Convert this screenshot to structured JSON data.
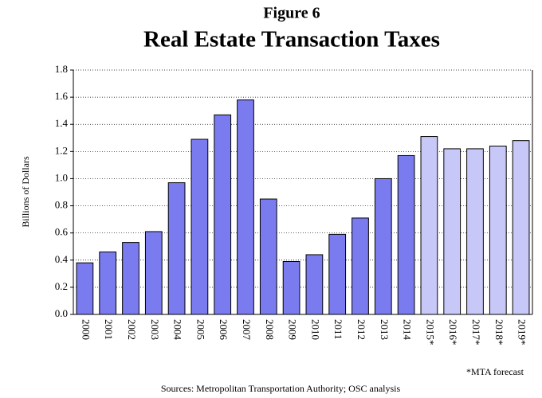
{
  "chart_data": {
    "type": "bar",
    "kicker": "Figure 6",
    "title": "Real Estate Transaction Taxes",
    "y_label": "Billions of Dollars",
    "categories": [
      "2000",
      "2001",
      "2002",
      "2003",
      "2004",
      "2005",
      "2006",
      "2007",
      "2008",
      "2009",
      "2010",
      "2011",
      "2012",
      "2013",
      "2014",
      "2015*",
      "2016*",
      "2017*",
      "2018*",
      "2019*"
    ],
    "values": [
      0.38,
      0.46,
      0.53,
      0.61,
      0.97,
      1.29,
      1.47,
      1.58,
      0.85,
      0.39,
      0.44,
      0.59,
      0.71,
      1.0,
      1.17,
      1.31,
      1.22,
      1.22,
      1.24,
      1.28
    ],
    "colors": [
      "#7b7bf0",
      "#7b7bf0",
      "#7b7bf0",
      "#7b7bf0",
      "#7b7bf0",
      "#7b7bf0",
      "#7b7bf0",
      "#7b7bf0",
      "#7b7bf0",
      "#7b7bf0",
      "#7b7bf0",
      "#7b7bf0",
      "#7b7bf0",
      "#7b7bf0",
      "#7b7bf0",
      "#c8c8f8",
      "#c8c8f8",
      "#c8c8f8",
      "#c8c8f8",
      "#c8c8f8"
    ],
    "ylim": [
      0,
      1.8
    ],
    "yticks": [
      {
        "value": 0,
        "label": "0.0"
      },
      0.2,
      0.4,
      0.6,
      0.8,
      {
        "value": 1,
        "label": "1.0"
      },
      1.2,
      1.4,
      1.6,
      1.8
    ],
    "grid": true,
    "footnote": "*MTA forecast",
    "source": "Sources: Metropolitan Transportation Authority; OSC analysis"
  }
}
